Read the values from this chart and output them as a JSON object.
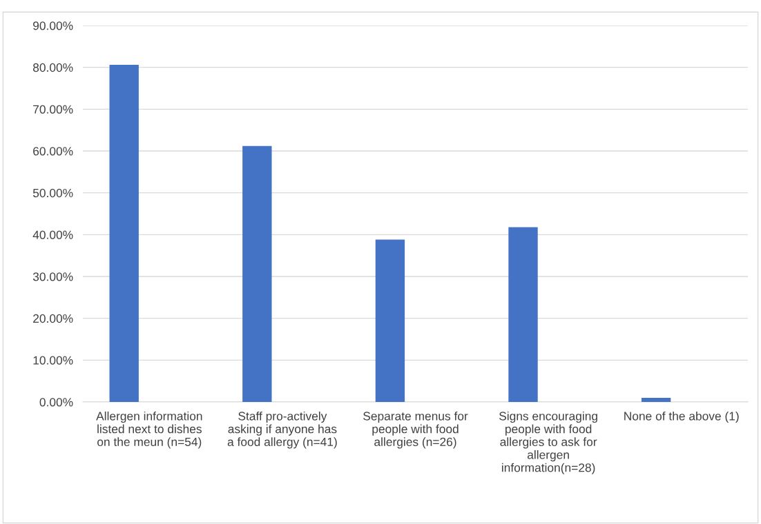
{
  "chart_data": {
    "type": "bar",
    "categories": [
      "Allergen information listed next to dishes on the meun (n=54)",
      "Staff pro-actively asking if anyone has a food allergy (n=41)",
      "Separate menus for people with food allergies (n=26)",
      "Signs encouraging people with food allergies to ask for allergen information(n=28)",
      "None of the above (1)"
    ],
    "values": [
      80.6,
      61.2,
      38.8,
      41.8,
      1.0
    ],
    "color": "#4472c4",
    "ylim": [
      0,
      90
    ],
    "yticks": [
      {
        "value": 0,
        "label": "0.00%"
      },
      {
        "value": 10,
        "label": "10.00%"
      },
      {
        "value": 20,
        "label": "20.00%"
      },
      {
        "value": 30,
        "label": "30.00%"
      },
      {
        "value": 40,
        "label": "40.00%"
      },
      {
        "value": 50,
        "label": "50.00%"
      },
      {
        "value": 60,
        "label": "60.00%"
      },
      {
        "value": 70,
        "label": "70.00%"
      },
      {
        "value": 80,
        "label": "80.00%"
      },
      {
        "value": 90,
        "label": "90.00%"
      }
    ],
    "grid": "y",
    "legend": false
  }
}
